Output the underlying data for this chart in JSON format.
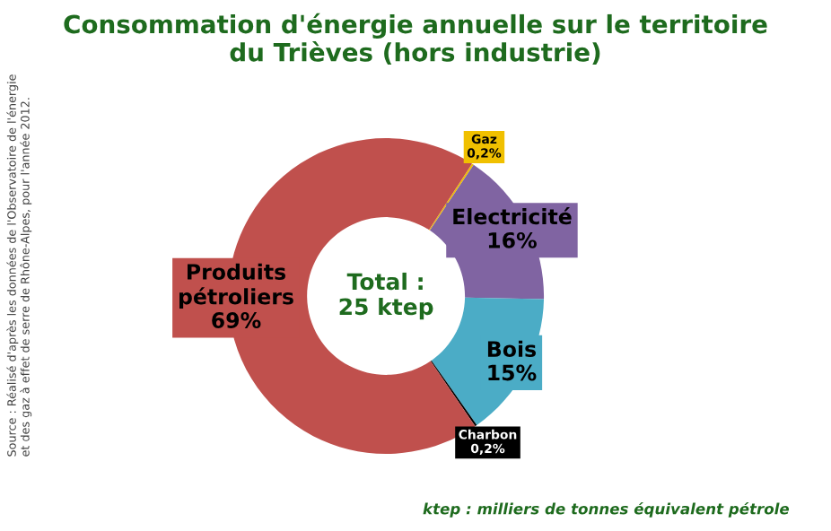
{
  "chart_data": {
    "type": "donut",
    "title": "Consommation d'énergie annuelle sur le territoire\ndu Trièves (hors industrie)",
    "categories": [
      "Gaz",
      "Electricité",
      "Bois",
      "Charbon",
      "Produits\npétroliers"
    ],
    "values": [
      0.2,
      16,
      15,
      0.2,
      69
    ],
    "colors": [
      "#f0c000",
      "#8064a2",
      "#4bacc6",
      "#000000",
      "#c0504d"
    ],
    "value_labels": [
      "0,2%",
      "16%",
      "15%",
      "0,2%",
      "69%"
    ],
    "annotations": [
      "Total :\n25 ktep",
      "Source : Réalisé d'après les données de l'Observatoire de l'énergie\net des gaz à effet de serre de Rhône-Alpes, pour l'année 2012.",
      "ktep : milliers de tonnes équivalent pétrole"
    ],
    "legend": false
  }
}
